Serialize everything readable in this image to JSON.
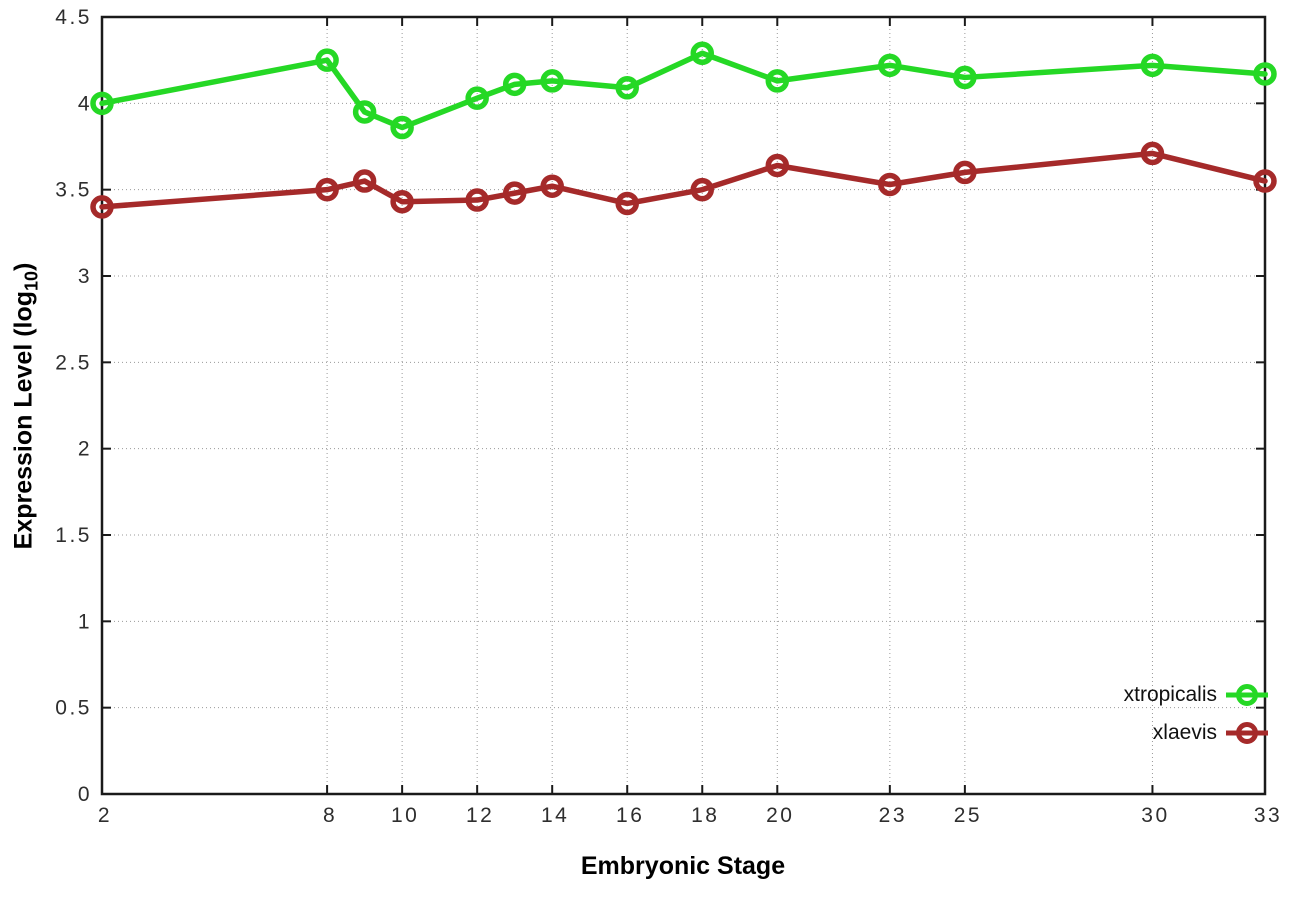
{
  "chart_data": {
    "type": "line",
    "x": [
      2,
      8,
      9,
      10,
      12,
      13,
      14,
      16,
      18,
      20,
      23,
      25,
      30,
      33
    ],
    "series": [
      {
        "name": "xtropicalis",
        "color": "#25d825",
        "values": [
          4.0,
          4.25,
          3.95,
          3.86,
          4.03,
          4.11,
          4.13,
          4.09,
          4.29,
          4.13,
          4.22,
          4.15,
          4.22,
          4.17
        ]
      },
      {
        "name": "xlaevis",
        "color": "#a52a2a",
        "values": [
          3.4,
          3.5,
          3.55,
          3.43,
          3.44,
          3.48,
          3.52,
          3.42,
          3.5,
          3.64,
          3.53,
          3.6,
          3.71,
          3.55
        ]
      }
    ],
    "title": "",
    "xlabel": "Embryonic Stage",
    "ylabel": "Expression Level (log10)",
    "ylabel_parts": {
      "main": "Expression Level (log",
      "sub": "10",
      "close": ")"
    },
    "xlim": [
      2,
      33
    ],
    "ylim": [
      0,
      4.5
    ],
    "xticks": [
      2,
      8,
      10,
      12,
      14,
      16,
      18,
      20,
      23,
      25,
      30,
      33
    ],
    "yticks": [
      "0",
      "0.5",
      "1",
      "1.5",
      "2",
      "2.5",
      "3",
      "3.5",
      "4",
      "4.5"
    ],
    "grid": true,
    "marker": "open-circle",
    "legend_position": "inside-bottom-right",
    "axis_color": "#1a1a1a",
    "grid_color": "#999999",
    "tick_label_color": "#2e2e2e"
  },
  "legend": {
    "items": [
      {
        "label": "xtropicalis"
      },
      {
        "label": "xlaevis"
      }
    ]
  }
}
